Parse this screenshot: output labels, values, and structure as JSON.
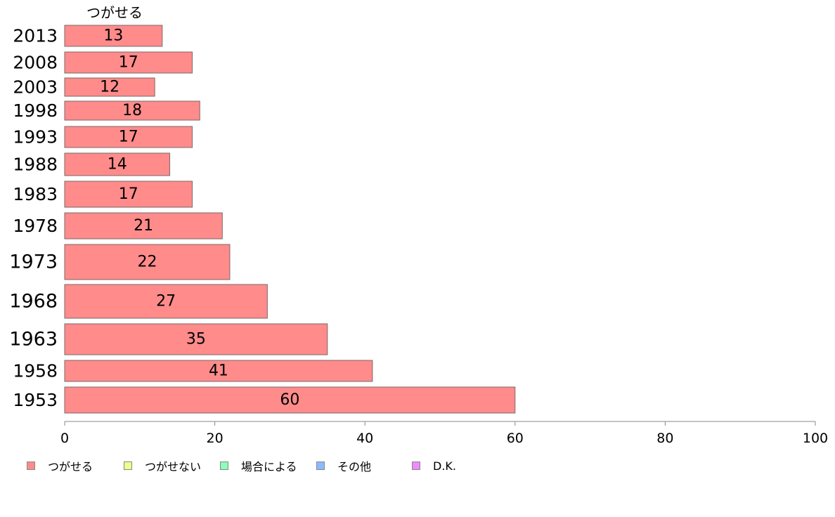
{
  "chart_data": {
    "type": "bar",
    "orientation": "horizontal",
    "title": "",
    "xlabel": "",
    "ylabel": "",
    "xlim": [
      0,
      100
    ],
    "x_ticks": [
      "0",
      "20",
      "40",
      "60",
      "80",
      "100"
    ],
    "grid": false,
    "legend_position": "bottom",
    "categories": [
      "2013",
      "2008",
      "2003",
      "1998",
      "1993",
      "1988",
      "1983",
      "1978",
      "1973",
      "1968",
      "1963",
      "1958",
      "1953"
    ],
    "series": [
      {
        "name": "つがせる",
        "color": "#ff8b8b",
        "values": [
          13,
          17,
          12,
          18,
          17,
          14,
          17,
          21,
          22,
          27,
          35,
          41,
          60
        ],
        "value_labels": [
          "13",
          "17",
          "12",
          "18",
          "17",
          "14",
          "17",
          "21",
          "22",
          "27",
          "35",
          "41",
          "60"
        ]
      }
    ],
    "series_header": "つがせる",
    "legend": [
      {
        "label": "つがせる",
        "color": "#ff8b8b"
      },
      {
        "label": "つがせない",
        "color": "#eeff8b"
      },
      {
        "label": "場合による",
        "color": "#8bffbb"
      },
      {
        "label": "その他",
        "color": "#8bbbff"
      },
      {
        "label": "D.K.",
        "color": "#ee8bff"
      }
    ]
  }
}
